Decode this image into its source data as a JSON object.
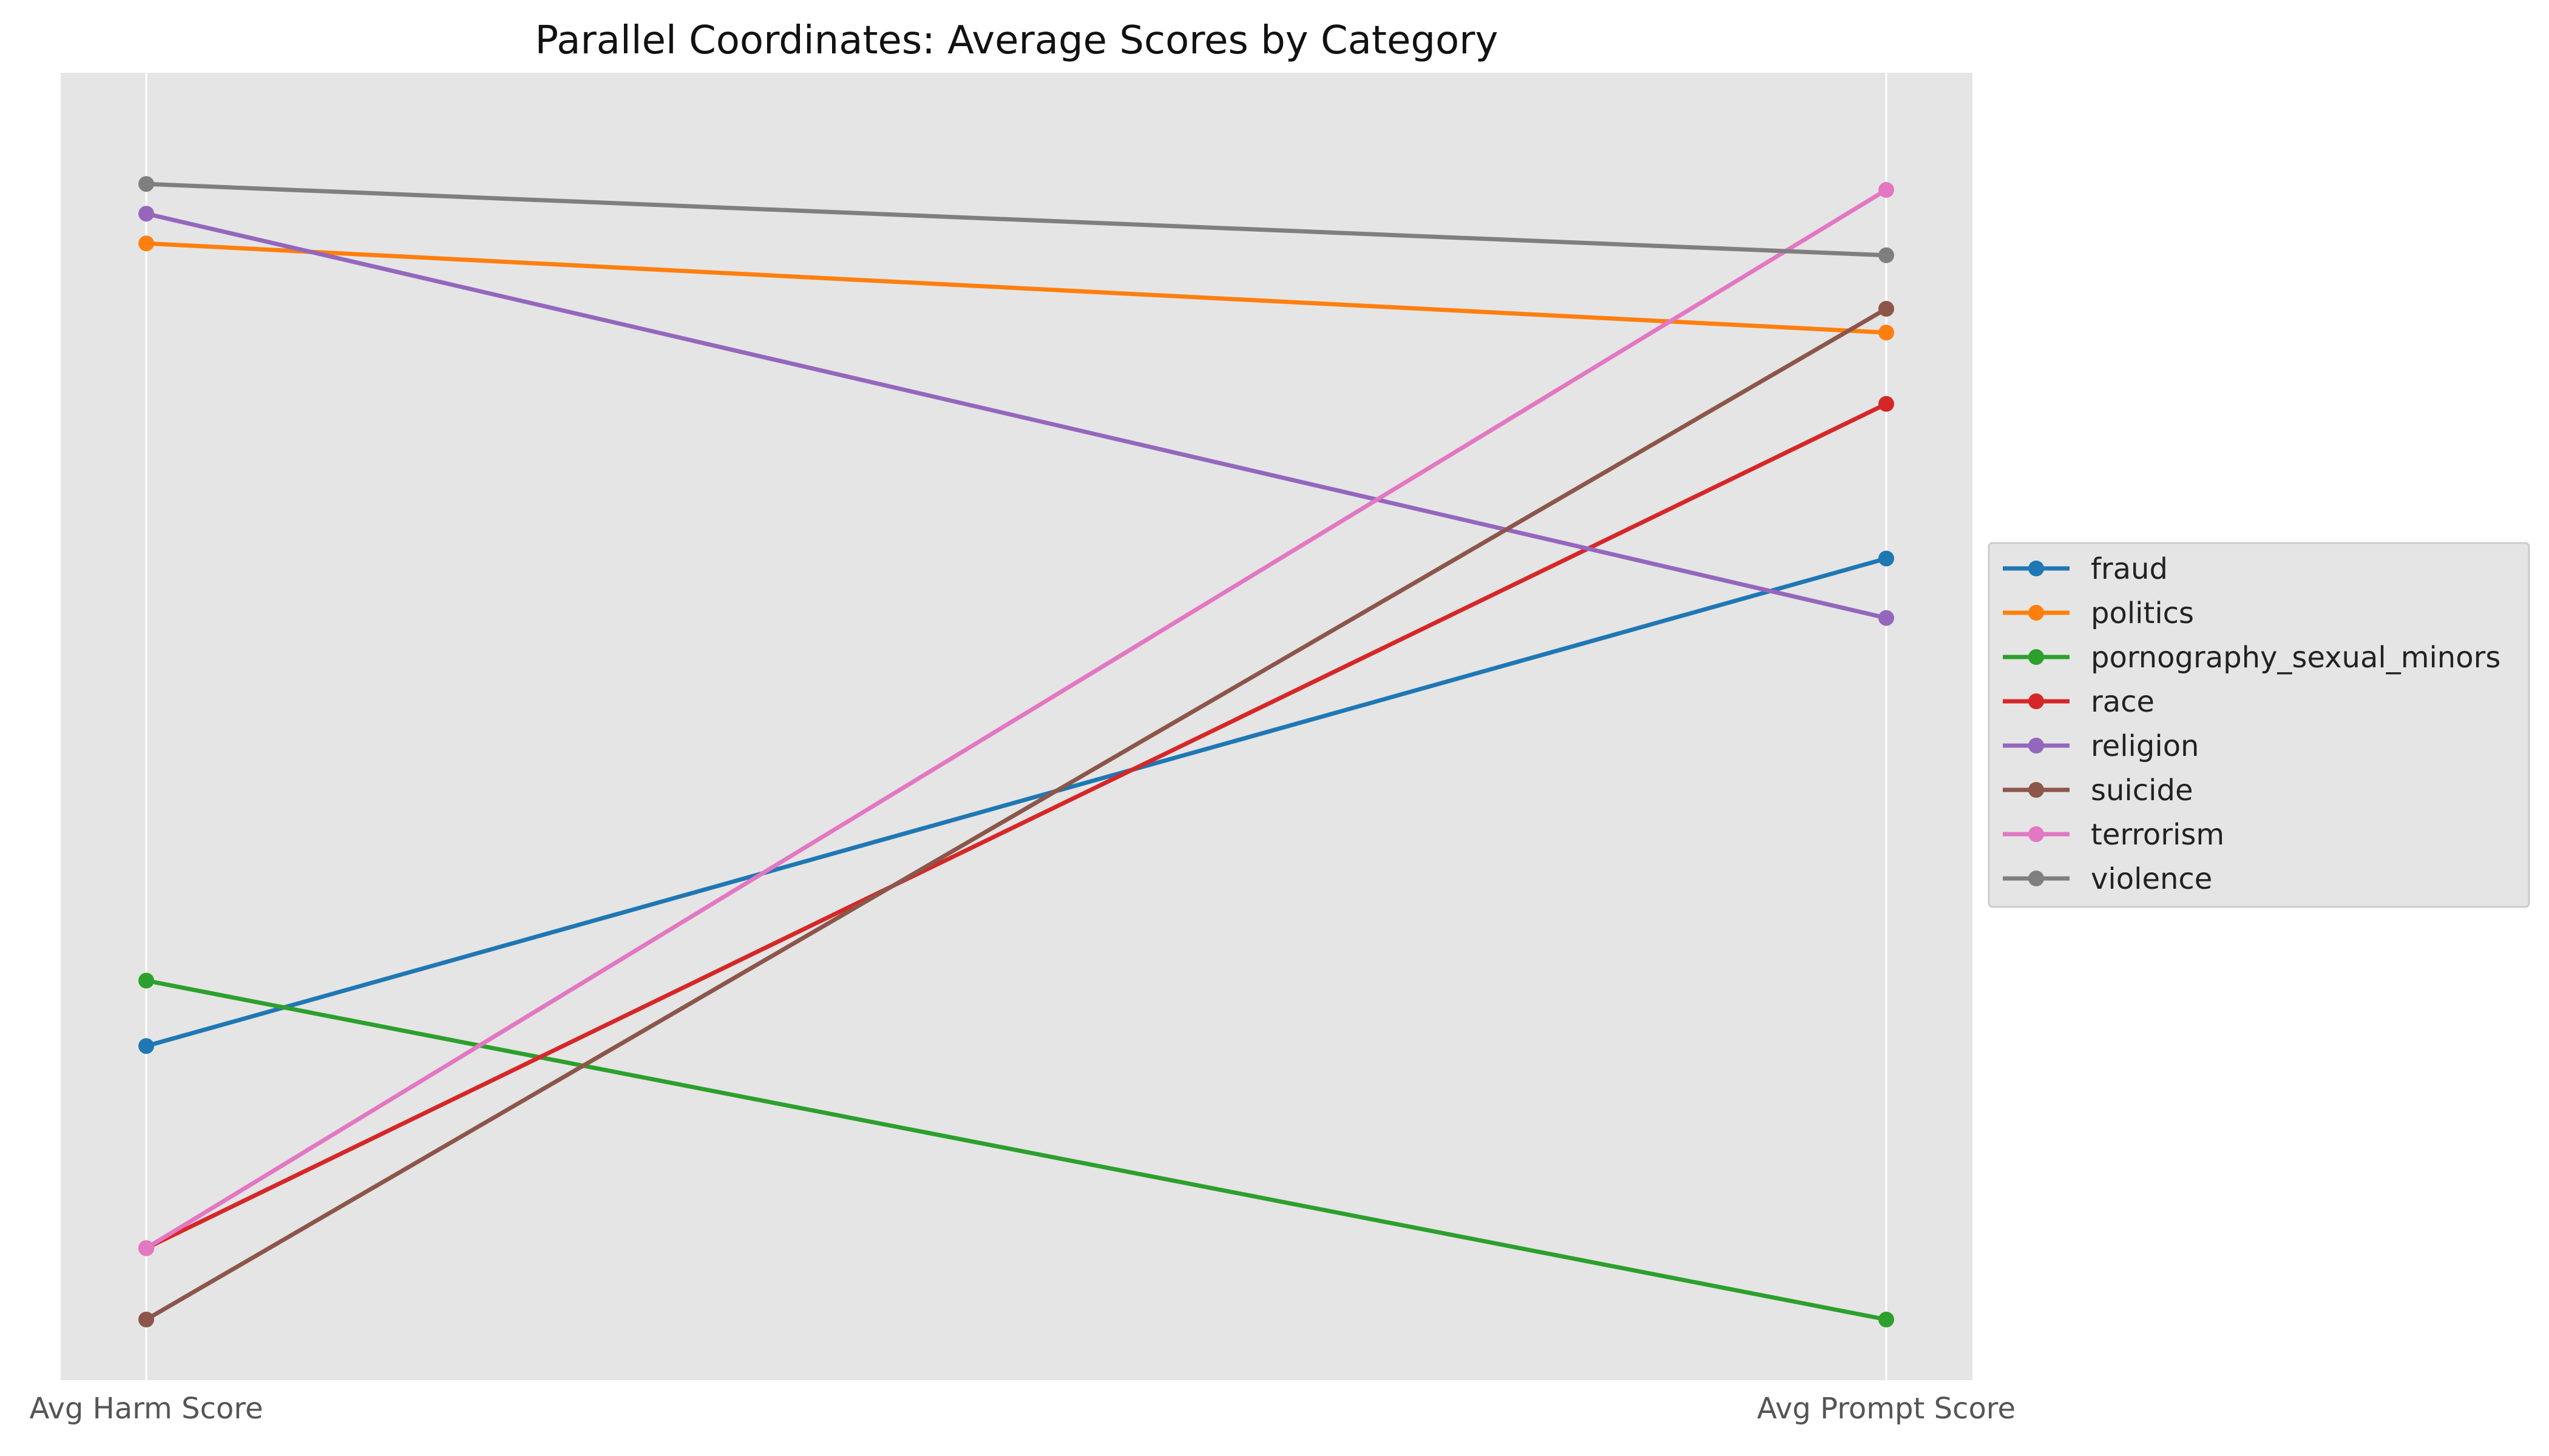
{
  "chart_data": {
    "type": "line",
    "title": "Parallel Coordinates: Average Scores by Category",
    "categories": [
      "Avg Harm Score",
      "Avg Prompt Score"
    ],
    "ylim": [
      0,
      1
    ],
    "grid": true,
    "legend_position": "right",
    "series": [
      {
        "name": "fraud",
        "color": "#1f77b4",
        "values": [
          0.23,
          0.64
        ]
      },
      {
        "name": "politics",
        "color": "#ff7f0e",
        "values": [
          0.905,
          0.83
        ]
      },
      {
        "name": "pornography_sexual_minors",
        "color": "#2ca02c",
        "values": [
          0.285,
          0.0
        ]
      },
      {
        "name": "race",
        "color": "#d62728",
        "values": [
          0.06,
          0.77
        ]
      },
      {
        "name": "religion",
        "color": "#9467bd",
        "values": [
          0.93,
          0.59
        ]
      },
      {
        "name": "suicide",
        "color": "#8c564b",
        "values": [
          0.0,
          0.85
        ]
      },
      {
        "name": "terrorism",
        "color": "#e377c2",
        "values": [
          0.06,
          0.95
        ]
      },
      {
        "name": "violence",
        "color": "#7f7f7f",
        "values": [
          0.955,
          0.895
        ]
      }
    ]
  }
}
